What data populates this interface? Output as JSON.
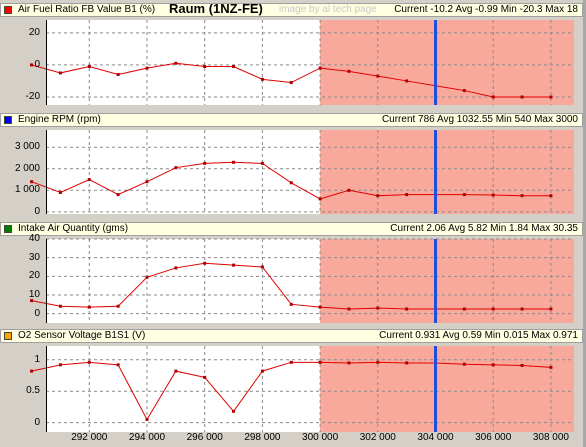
{
  "window": {
    "title": "Raum (1NZ-FE)",
    "watermark": "image by al tech page"
  },
  "colors": {
    "plot_bg": "#ffffff",
    "highlight_bg": "#f9a99b",
    "line": "#e00000",
    "cursor": "#1f4fe0",
    "grid": "#8a8a8a"
  },
  "panels": [
    {
      "name": "Air Fuel Ratio FB Value B1 (%)",
      "color": "#ff0000",
      "stats": "Current -10.2 Avg -0.99 Min -20.3 Max 18"
    },
    {
      "name": "Engine RPM (rpm)",
      "color": "#0000ff",
      "stats": "Current 786 Avg 1032.55 Min 540 Max 3000"
    },
    {
      "name": "Intake Air Quantity (gms)",
      "color": "#008000",
      "stats": "Current 2.06 Avg 5.82 Min 1.84 Max 30.35"
    },
    {
      "name": "O2 Sensor Voltage B1S1 (V)",
      "color": "#ffa500",
      "stats": "Current 0.931 Avg 0.59 Min 0.015 Max 0.971"
    }
  ],
  "x_axis": {
    "range": [
      290500,
      308800
    ],
    "ticks": [
      292000,
      294000,
      296000,
      298000,
      300000,
      302000,
      304000,
      306000,
      308000
    ],
    "tick_labels": [
      "292 000",
      "294 000",
      "296 000",
      "298 000",
      "300 000",
      "302 000",
      "304 000",
      "306 000",
      "308 000"
    ],
    "highlight_start": 300000,
    "cursor": 304000
  },
  "chart_data": [
    {
      "type": "line",
      "x": [
        290000,
        291000,
        292000,
        293000,
        294000,
        295000,
        296000,
        297000,
        298000,
        299000,
        300000,
        301000,
        302000,
        303000,
        304000,
        305000,
        306000,
        307000,
        308000
      ],
      "values": [
        0,
        -5,
        -1,
        -6,
        -2,
        1,
        -1,
        -1,
        -9,
        -11,
        -2,
        -4,
        -7,
        -10,
        -13,
        -16,
        -20,
        -20,
        -20
      ],
      "ylim": [
        -25,
        28
      ],
      "yticks": [
        -20,
        0,
        20
      ],
      "ytick_labels": [
        "-20",
        "0",
        "20"
      ]
    },
    {
      "type": "line",
      "x": [
        290000,
        291000,
        292000,
        293000,
        294000,
        295000,
        296000,
        297000,
        298000,
        299000,
        300000,
        301000,
        302000,
        303000,
        304000,
        305000,
        306000,
        307000,
        308000
      ],
      "values": [
        1400,
        900,
        1500,
        800,
        1400,
        2050,
        2250,
        2300,
        2250,
        1350,
        600,
        1000,
        750,
        800,
        800,
        800,
        780,
        750,
        750
      ],
      "ylim": [
        -100,
        3800
      ],
      "yticks": [
        0,
        1000,
        2000,
        3000
      ],
      "ytick_labels": [
        "0",
        "1 000",
        "2 000",
        "3 000"
      ]
    },
    {
      "type": "line",
      "x": [
        290000,
        291000,
        292000,
        293000,
        294000,
        295000,
        296000,
        297000,
        298000,
        299000,
        300000,
        301000,
        302000,
        303000,
        304000,
        305000,
        306000,
        307000,
        308000
      ],
      "values": [
        7,
        4,
        3.5,
        4,
        19.5,
        24.5,
        27,
        26,
        25,
        5,
        3.5,
        2.5,
        3,
        2.5,
        2.5,
        2.5,
        2.5,
        2.5,
        2.5
      ],
      "ylim": [
        -5,
        40
      ],
      "yticks": [
        0,
        10,
        20,
        30,
        40
      ],
      "ytick_labels": [
        "0",
        "10",
        "20",
        "30",
        "40"
      ]
    },
    {
      "type": "line",
      "x": [
        290000,
        291000,
        292000,
        293000,
        294000,
        295000,
        296000,
        297000,
        298000,
        299000,
        300000,
        301000,
        302000,
        303000,
        304000,
        305000,
        306000,
        307000,
        308000
      ],
      "values": [
        0.82,
        0.92,
        0.96,
        0.92,
        0.05,
        0.82,
        0.72,
        0.18,
        0.82,
        0.96,
        0.96,
        0.95,
        0.96,
        0.95,
        0.95,
        0.93,
        0.92,
        0.91,
        0.88
      ],
      "ylim": [
        -0.15,
        1.22
      ],
      "yticks": [
        0,
        0.5,
        1
      ],
      "ytick_labels": [
        "0",
        "0.5",
        "1"
      ]
    }
  ]
}
